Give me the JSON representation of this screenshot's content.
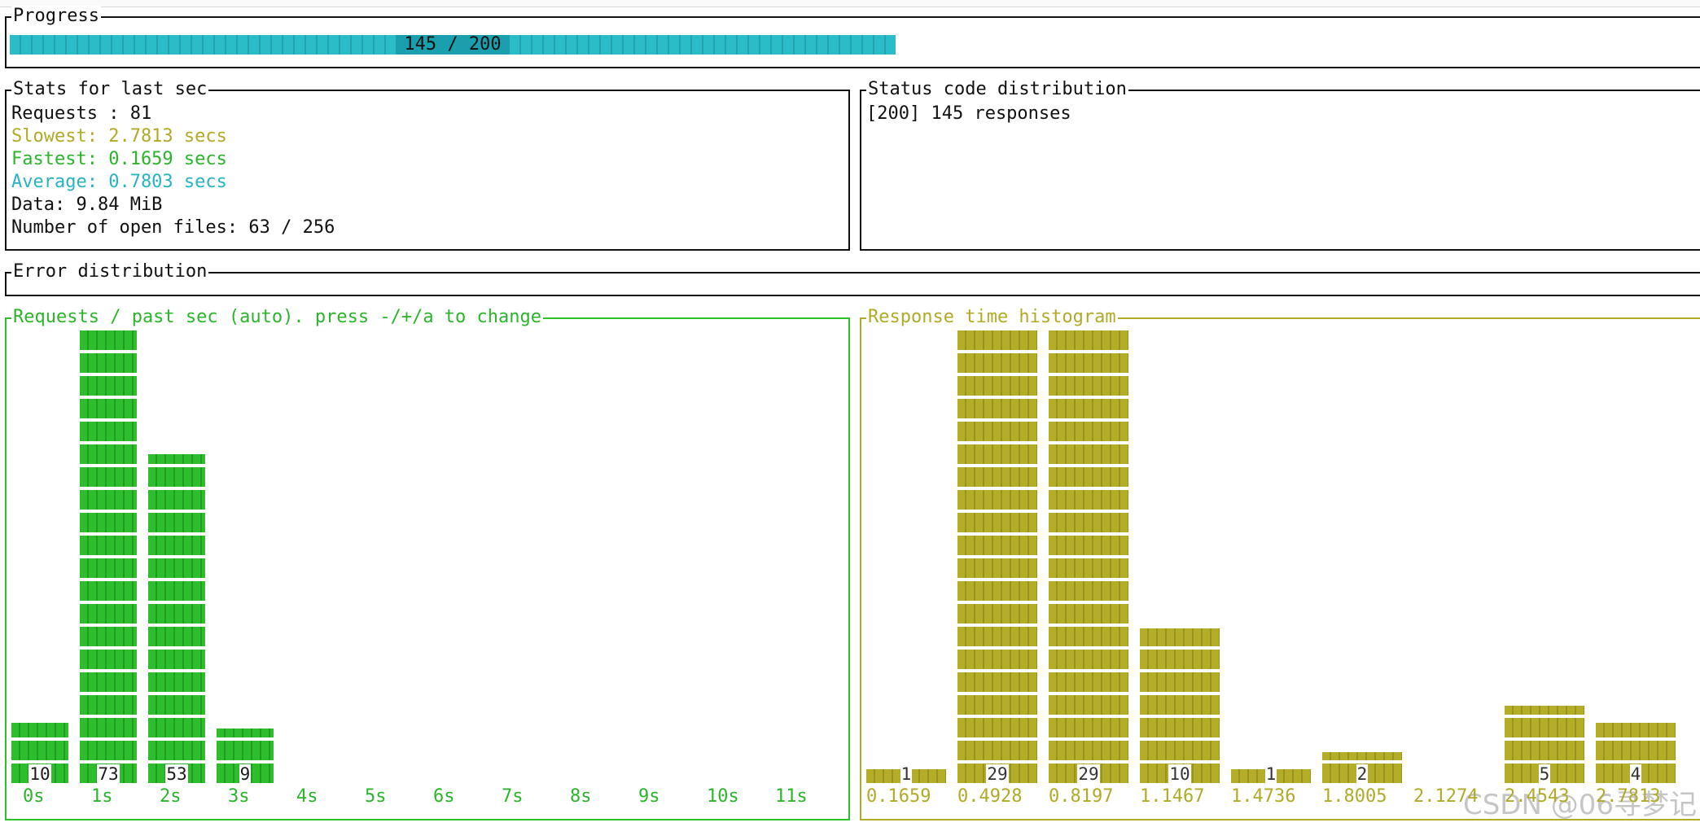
{
  "progress": {
    "title": "Progress",
    "completed": 145,
    "total": 200,
    "label": "145 / 200",
    "color": "#2bbcca"
  },
  "stats": {
    "title": "Stats for last sec",
    "requests": "Requests : 81",
    "slowest": "Slowest: 2.7813 secs",
    "fastest": "Fastest: 0.1659 secs",
    "average": "Average: 0.7803 secs",
    "data": "Data: 9.84 MiB",
    "open_files": "Number of open files: 63 / 256"
  },
  "status_codes": {
    "title": "Status code distribution",
    "lines": [
      "[200] 145 responses"
    ]
  },
  "errors": {
    "title": "Error distribution"
  },
  "requests_chart": {
    "title": "Requests / past sec (auto). press -/+/a to change",
    "color": "#2bbd2d"
  },
  "histogram": {
    "title": "Response time histogram",
    "color": "#b3ad28"
  },
  "chart_data": [
    {
      "type": "bar",
      "title": "Requests / past sec (auto). press -/+/a to change",
      "categories": [
        "0s",
        "1s",
        "2s",
        "3s",
        "4s",
        "5s",
        "6s",
        "7s",
        "8s",
        "9s",
        "10s",
        "11s"
      ],
      "values": [
        10,
        73,
        53,
        9,
        0,
        0,
        0,
        0,
        0,
        0,
        0,
        0
      ],
      "ylim": [
        0,
        73
      ]
    },
    {
      "type": "bar",
      "title": "Response time histogram",
      "categories": [
        "0.1659",
        "0.4928",
        "0.8197",
        "1.1467",
        "1.4736",
        "1.8005",
        "2.1274",
        "2.4543",
        "2.7813"
      ],
      "values": [
        1,
        29,
        29,
        10,
        1,
        2,
        0,
        5,
        4
      ],
      "ylim": [
        0,
        29
      ]
    }
  ],
  "watermark": "CSDN @06寻梦记"
}
